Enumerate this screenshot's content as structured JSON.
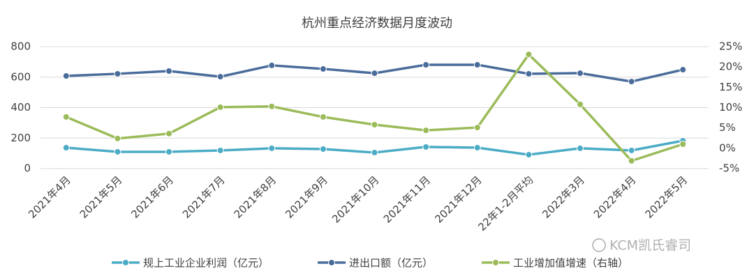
{
  "chart_data": {
    "type": "line",
    "title": "杭州重点经济数据月度波动",
    "categories": [
      "2021年4月",
      "2021年5月",
      "2021年6月",
      "2021年7月",
      "2021年8月",
      "2021年9月",
      "2021年10月",
      "2021年11月",
      "2021年12月",
      "22年1-2月平均",
      "2022年3月",
      "2022年4月",
      "2022年5月"
    ],
    "series": [
      {
        "name": "规上工业企业利润（亿元）",
        "color": "#4bacc6",
        "values": [
          137,
          110,
          110,
          119,
          133,
          128,
          105,
          142,
          137,
          91,
          133,
          119,
          183
        ]
      },
      {
        "name": "进出口额（亿元）",
        "color": "#4a6c9b",
        "values": [
          608,
          622,
          640,
          603,
          677,
          654,
          626,
          681,
          681,
          622,
          626,
          571,
          649
        ]
      },
      {
        "name": "工业增加值增速（右轴）",
        "color": "#9bbb59",
        "axis": "y2",
        "values": [
          7.7,
          2.4,
          3.6,
          10.1,
          10.3,
          7.7,
          5.8,
          4.4,
          5.1,
          23.1,
          10.8,
          -3.1,
          1.0
        ]
      }
    ],
    "ylim": [
      0,
      800
    ],
    "yticks": [
      0,
      200,
      400,
      600,
      800
    ],
    "y2lim": [
      -5,
      25
    ],
    "y2ticks": [
      {
        "value": -5,
        "label": "-5%"
      },
      {
        "value": 0,
        "label": "0%"
      },
      {
        "value": 5,
        "label": "5%"
      },
      {
        "value": 10,
        "label": "10%"
      },
      {
        "value": 15,
        "label": "15%"
      },
      {
        "value": 20,
        "label": "20%"
      },
      {
        "value": 25,
        "label": "25%"
      }
    ],
    "grid": true,
    "legend": "bottom",
    "watermark": "KCM凯氏睿司"
  }
}
